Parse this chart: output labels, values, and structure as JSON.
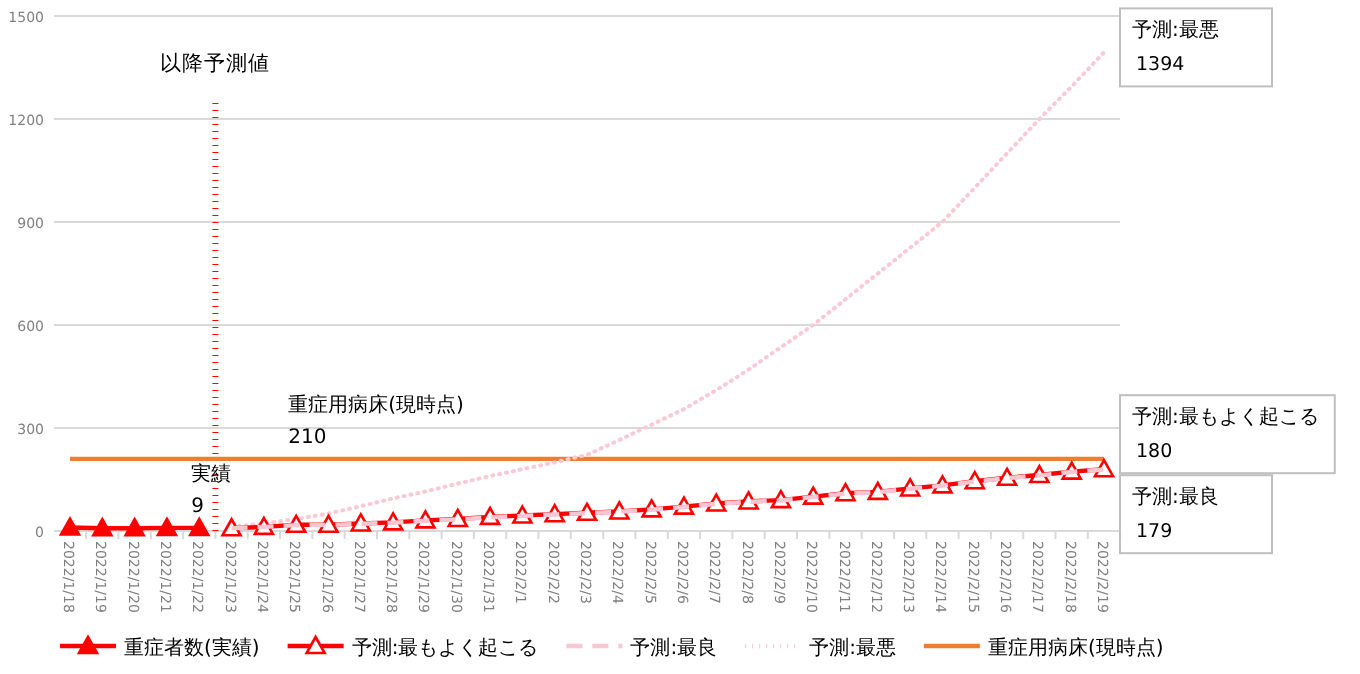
{
  "chart_data": {
    "type": "line",
    "categories": [
      "2022/1/18",
      "2022/1/19",
      "2022/1/20",
      "2022/1/21",
      "2022/1/22",
      "2022/1/23",
      "2022/1/24",
      "2022/1/25",
      "2022/1/26",
      "2022/1/27",
      "2022/1/28",
      "2022/1/29",
      "2022/1/30",
      "2022/1/31",
      "2022/2/1",
      "2022/2/2",
      "2022/2/3",
      "2022/2/4",
      "2022/2/5",
      "2022/2/6",
      "2022/2/7",
      "2022/2/8",
      "2022/2/9",
      "2022/2/10",
      "2022/2/11",
      "2022/2/12",
      "2022/2/13",
      "2022/2/14",
      "2022/2/15",
      "2022/2/16",
      "2022/2/17",
      "2022/2/18",
      "2022/2/19"
    ],
    "series": [
      {
        "name": "重症者数(実績)",
        "color": "#ff0000",
        "marker": "triangle",
        "line_style": "solid",
        "values": [
          10,
          8,
          8,
          9,
          9,
          null,
          null,
          null,
          null,
          null,
          null,
          null,
          null,
          null,
          null,
          null,
          null,
          null,
          null,
          null,
          null,
          null,
          null,
          null,
          null,
          null,
          null,
          null,
          null,
          null,
          null,
          null,
          null
        ],
        "value_labels": [
          null,
          null,
          null,
          null,
          "9",
          null,
          null,
          null,
          null,
          null,
          null,
          null,
          null,
          null,
          null,
          null,
          null,
          null,
          null,
          null,
          null,
          null,
          null,
          null,
          null,
          null,
          null,
          null,
          null,
          null,
          null,
          null,
          null
        ]
      },
      {
        "name": "予測:最もよく起こる",
        "color": "#ff0000",
        "marker": "triangle",
        "line_style": "solid",
        "values": [
          null,
          null,
          null,
          null,
          null,
          8,
          12,
          18,
          18,
          22,
          25,
          31,
          35,
          41,
          45,
          49,
          53,
          57,
          63,
          71,
          80,
          86,
          90,
          100,
          110,
          114,
          124,
          133,
          145,
          155,
          163,
          173,
          180
        ],
        "value_labels": [
          null,
          null,
          null,
          null,
          null,
          null,
          null,
          null,
          null,
          null,
          null,
          null,
          null,
          null,
          null,
          null,
          null,
          null,
          null,
          null,
          null,
          null,
          null,
          null,
          null,
          null,
          null,
          null,
          null,
          null,
          null,
          null,
          "180"
        ]
      },
      {
        "name": "予測:最良",
        "color": "#f9c6d3",
        "marker": "none",
        "line_style": "dashed",
        "values": [
          null,
          null,
          null,
          null,
          null,
          8,
          12,
          17,
          18,
          21,
          24,
          30,
          34,
          40,
          44,
          48,
          52,
          56,
          62,
          70,
          79,
          85,
          89,
          99,
          109,
          113,
          123,
          132,
          144,
          154,
          162,
          172,
          179
        ],
        "value_labels": [
          null,
          null,
          null,
          null,
          null,
          null,
          null,
          null,
          null,
          null,
          null,
          null,
          null,
          null,
          null,
          null,
          null,
          null,
          null,
          null,
          null,
          null,
          null,
          null,
          null,
          null,
          null,
          null,
          null,
          null,
          null,
          null,
          "179"
        ]
      },
      {
        "name": "予測:最悪",
        "color": "#fbc8d6",
        "marker": "none",
        "line_style": "dotted",
        "values": [
          null,
          null,
          null,
          null,
          null,
          12,
          22,
          35,
          51,
          72,
          95,
          115,
          138,
          160,
          180,
          200,
          222,
          265,
          310,
          355,
          410,
          470,
          535,
          600,
          675,
          750,
          825,
          900,
          1000,
          1100,
          1200,
          1295,
          1394
        ],
        "value_labels": [
          null,
          null,
          null,
          null,
          null,
          null,
          null,
          null,
          null,
          null,
          null,
          null,
          null,
          null,
          null,
          null,
          null,
          null,
          null,
          null,
          null,
          null,
          null,
          null,
          null,
          null,
          null,
          null,
          null,
          null,
          null,
          null,
          "1394"
        ]
      },
      {
        "name": "重症用病床(現時点)",
        "color": "#ed7d31",
        "marker": "none",
        "line_style": "solid",
        "values": [
          210,
          210,
          210,
          210,
          210,
          210,
          210,
          210,
          210,
          210,
          210,
          210,
          210,
          210,
          210,
          210,
          210,
          210,
          210,
          210,
          210,
          210,
          210,
          210,
          210,
          210,
          210,
          210,
          210,
          210,
          210,
          210,
          210
        ],
        "value_labels": [
          null,
          null,
          null,
          null,
          null,
          null,
          null,
          "210",
          null,
          null,
          null,
          null,
          null,
          null,
          null,
          null,
          null,
          null,
          null,
          null,
          null,
          null,
          null,
          null,
          null,
          null,
          null,
          null,
          null,
          null,
          null,
          null,
          null
        ]
      }
    ],
    "annotations": [
      {
        "text": "実績",
        "x": "2022/1/22",
        "y": 9
      },
      {
        "text": "重症用病床(現時点)",
        "x": "2022/1/25",
        "y": 210
      }
    ],
    "ref_lines": [
      {
        "axis": "x",
        "value": "2022/1/23",
        "label": "以降予測値",
        "color": "#ff0000",
        "line_style": "dotted"
      }
    ],
    "ylim": [
      0,
      1500
    ],
    "yticks": [
      0,
      300,
      600,
      900,
      1200,
      1500
    ],
    "grid": "y",
    "legend": "bottom"
  }
}
